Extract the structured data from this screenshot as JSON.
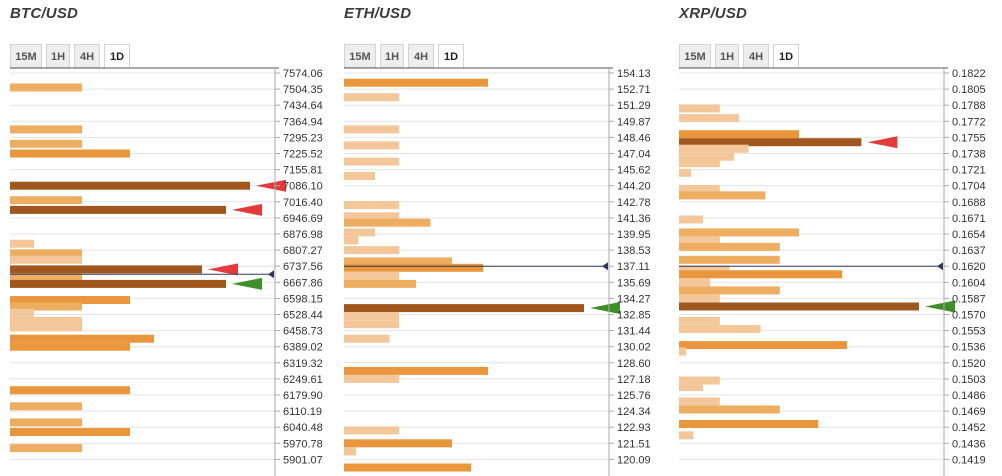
{
  "panels": [
    {
      "title": "BTC/USD",
      "tabs": [
        "15M",
        "1H",
        "4H",
        "1D"
      ],
      "active_tab": "1D",
      "chart_data": {
        "type": "bar",
        "orientation": "horizontal",
        "price_levels": [
          "7574.06",
          "7504.35",
          "7434.64",
          "7364.94",
          "7295.23",
          "7225.52",
          "7155.81",
          "7086.10",
          "7016.40",
          "6946.69",
          "6876.98",
          "6807.27",
          "6737.56",
          "6667.86",
          "6598.15",
          "6528.44",
          "6458.73",
          "6389.02",
          "6319.32",
          "6249.61",
          "6179.90",
          "6110.19",
          "6040.48",
          "5970.78",
          "5901.07"
        ],
        "current_price_level": 12.5,
        "bars": [
          {
            "level": 0.9,
            "strength": 3,
            "intensity": "medium"
          },
          {
            "level": 3.5,
            "strength": 3,
            "intensity": "medium"
          },
          {
            "level": 4.4,
            "strength": 3,
            "intensity": "medium"
          },
          {
            "level": 5.0,
            "strength": 5,
            "intensity": "bright"
          },
          {
            "level": 7.0,
            "strength": 10,
            "intensity": "dark",
            "marker": "sell"
          },
          {
            "level": 7.9,
            "strength": 3,
            "intensity": "medium"
          },
          {
            "level": 8.5,
            "strength": 9,
            "intensity": "dark",
            "marker": "sell"
          },
          {
            "level": 10.6,
            "strength": 1,
            "intensity": "light"
          },
          {
            "level": 11.2,
            "strength": 3,
            "intensity": "medium"
          },
          {
            "level": 11.6,
            "strength": 3,
            "intensity": "light"
          },
          {
            "level": 12.2,
            "strength": 8,
            "intensity": "dark",
            "marker": "sell"
          },
          {
            "level": 12.7,
            "strength": 3,
            "intensity": "medium"
          },
          {
            "level": 13.1,
            "strength": 9,
            "intensity": "dark",
            "marker": "buy"
          },
          {
            "level": 14.1,
            "strength": 5,
            "intensity": "bright"
          },
          {
            "level": 14.5,
            "strength": 3,
            "intensity": "medium"
          },
          {
            "level": 14.9,
            "strength": 1,
            "intensity": "light"
          },
          {
            "level": 15.4,
            "strength": 3,
            "intensity": "light"
          },
          {
            "level": 15.8,
            "strength": 3,
            "intensity": "light"
          },
          {
            "level": 16.5,
            "strength": 6,
            "intensity": "bright"
          },
          {
            "level": 17.0,
            "strength": 5,
            "intensity": "bright"
          },
          {
            "level": 19.7,
            "strength": 5,
            "intensity": "bright"
          },
          {
            "level": 20.7,
            "strength": 3,
            "intensity": "medium"
          },
          {
            "level": 21.7,
            "strength": 3,
            "intensity": "medium"
          },
          {
            "level": 22.3,
            "strength": 5,
            "intensity": "bright"
          },
          {
            "level": 23.3,
            "strength": 3,
            "intensity": "medium"
          }
        ]
      }
    },
    {
      "title": "ETH/USD",
      "tabs": [
        "15M",
        "1H",
        "4H",
        "1D"
      ],
      "active_tab": "1D",
      "chart_data": {
        "type": "bar",
        "orientation": "horizontal",
        "price_levels": [
          "154.13",
          "152.71",
          "151.29",
          "149.87",
          "148.46",
          "147.04",
          "145.62",
          "144.20",
          "142.78",
          "141.36",
          "139.95",
          "138.53",
          "137.11",
          "135.69",
          "134.27",
          "132.85",
          "131.44",
          "130.02",
          "128.60",
          "127.18",
          "125.76",
          "124.34",
          "122.93",
          "121.51",
          "120.09"
        ],
        "current_price_level": 12.0,
        "bars": [
          {
            "level": 0.6,
            "strength": 6,
            "intensity": "bright"
          },
          {
            "level": 1.5,
            "strength": 2.3,
            "intensity": "light"
          },
          {
            "level": 3.5,
            "strength": 2.3,
            "intensity": "light"
          },
          {
            "level": 4.5,
            "strength": 2.3,
            "intensity": "light"
          },
          {
            "level": 5.5,
            "strength": 2.3,
            "intensity": "light"
          },
          {
            "level": 6.4,
            "strength": 1.3,
            "intensity": "light"
          },
          {
            "level": 8.2,
            "strength": 2.3,
            "intensity": "light"
          },
          {
            "level": 8.9,
            "strength": 2.3,
            "intensity": "light"
          },
          {
            "level": 9.3,
            "strength": 3.6,
            "intensity": "medium"
          },
          {
            "level": 9.9,
            "strength": 1.3,
            "intensity": "light"
          },
          {
            "level": 10.4,
            "strength": 0.6,
            "intensity": "light"
          },
          {
            "level": 11.0,
            "strength": 2.3,
            "intensity": "light"
          },
          {
            "level": 11.7,
            "strength": 4.5,
            "intensity": "medium"
          },
          {
            "level": 12.1,
            "strength": 5.8,
            "intensity": "bright"
          },
          {
            "level": 12.6,
            "strength": 2.3,
            "intensity": "light"
          },
          {
            "level": 13.1,
            "strength": 3.0,
            "intensity": "medium"
          },
          {
            "level": 14.6,
            "strength": 10,
            "intensity": "dark",
            "marker": "buy"
          },
          {
            "level": 15.1,
            "strength": 2.3,
            "intensity": "light"
          },
          {
            "level": 15.6,
            "strength": 2.3,
            "intensity": "light"
          },
          {
            "level": 16.5,
            "strength": 1.9,
            "intensity": "light"
          },
          {
            "level": 18.5,
            "strength": 6,
            "intensity": "bright"
          },
          {
            "level": 19.0,
            "strength": 2.3,
            "intensity": "light"
          },
          {
            "level": 22.2,
            "strength": 2.3,
            "intensity": "light"
          },
          {
            "level": 23.0,
            "strength": 4.5,
            "intensity": "bright"
          },
          {
            "level": 23.5,
            "strength": 0.5,
            "intensity": "light"
          },
          {
            "level": 24.5,
            "strength": 5.3,
            "intensity": "bright"
          }
        ]
      }
    },
    {
      "title": "XRP/USD",
      "tabs": [
        "15M",
        "1H",
        "4H",
        "1D"
      ],
      "active_tab": "1D",
      "chart_data": {
        "type": "bar",
        "orientation": "horizontal",
        "price_levels": [
          "0.1822",
          "0.1805",
          "0.1788",
          "0.1772",
          "0.1755",
          "0.1738",
          "0.1721",
          "0.1704",
          "0.1688",
          "0.1671",
          "0.1654",
          "0.1637",
          "0.1620",
          "0.1604",
          "0.1587",
          "0.1570",
          "0.1553",
          "0.1536",
          "0.1520",
          "0.1503",
          "0.1486",
          "0.1469",
          "0.1452",
          "0.1436",
          "0.1419"
        ],
        "current_price_level": 12.0,
        "bars": [
          {
            "level": 2.2,
            "strength": 1.7,
            "intensity": "light"
          },
          {
            "level": 2.8,
            "strength": 2.5,
            "intensity": "light"
          },
          {
            "level": 3.8,
            "strength": 5,
            "intensity": "bright"
          },
          {
            "level": 4.3,
            "strength": 7.6,
            "intensity": "dark",
            "marker": "sell"
          },
          {
            "level": 4.7,
            "strength": 2.9,
            "intensity": "light"
          },
          {
            "level": 5.2,
            "strength": 2.3,
            "intensity": "light"
          },
          {
            "level": 5.6,
            "strength": 1.7,
            "intensity": "light"
          },
          {
            "level": 6.2,
            "strength": 0.5,
            "intensity": "light"
          },
          {
            "level": 7.2,
            "strength": 1.7,
            "intensity": "light"
          },
          {
            "level": 7.6,
            "strength": 3.6,
            "intensity": "medium"
          },
          {
            "level": 9.1,
            "strength": 1.0,
            "intensity": "light"
          },
          {
            "level": 9.9,
            "strength": 5,
            "intensity": "medium"
          },
          {
            "level": 10.4,
            "strength": 1.7,
            "intensity": "light"
          },
          {
            "level": 10.8,
            "strength": 4.2,
            "intensity": "medium"
          },
          {
            "level": 11.6,
            "strength": 4.2,
            "intensity": "medium"
          },
          {
            "level": 12.2,
            "strength": 2.1,
            "intensity": "light"
          },
          {
            "level": 12.5,
            "strength": 6.8,
            "intensity": "bright"
          },
          {
            "level": 13.0,
            "strength": 1.3,
            "intensity": "light"
          },
          {
            "level": 13.5,
            "strength": 4.2,
            "intensity": "medium"
          },
          {
            "level": 14.0,
            "strength": 1.7,
            "intensity": "light"
          },
          {
            "level": 14.5,
            "strength": 10,
            "intensity": "dark",
            "marker": "buy"
          },
          {
            "level": 15.4,
            "strength": 1.7,
            "intensity": "light"
          },
          {
            "level": 15.9,
            "strength": 3.4,
            "intensity": "light"
          },
          {
            "level": 16.9,
            "strength": 7,
            "intensity": "bright"
          },
          {
            "level": 17.3,
            "strength": 0.3,
            "intensity": "light"
          },
          {
            "level": 19.1,
            "strength": 1.7,
            "intensity": "light"
          },
          {
            "level": 19.5,
            "strength": 1.0,
            "intensity": "light"
          },
          {
            "level": 20.4,
            "strength": 1.7,
            "intensity": "light"
          },
          {
            "level": 20.9,
            "strength": 4.2,
            "intensity": "medium"
          },
          {
            "level": 21.8,
            "strength": 5.8,
            "intensity": "bright"
          },
          {
            "level": 22.5,
            "strength": 0.6,
            "intensity": "light"
          }
        ]
      }
    }
  ],
  "colors": {
    "dark": "#a0571f",
    "bright": "#e9963c",
    "medium": "#eeae62",
    "light": "#f4c79b",
    "sell_marker": "#e43a3a",
    "buy_marker": "#3f8f29",
    "current_price_line": "#2e3a5a",
    "grid": "#e4e4e4",
    "axis": "#aaaaaa"
  }
}
